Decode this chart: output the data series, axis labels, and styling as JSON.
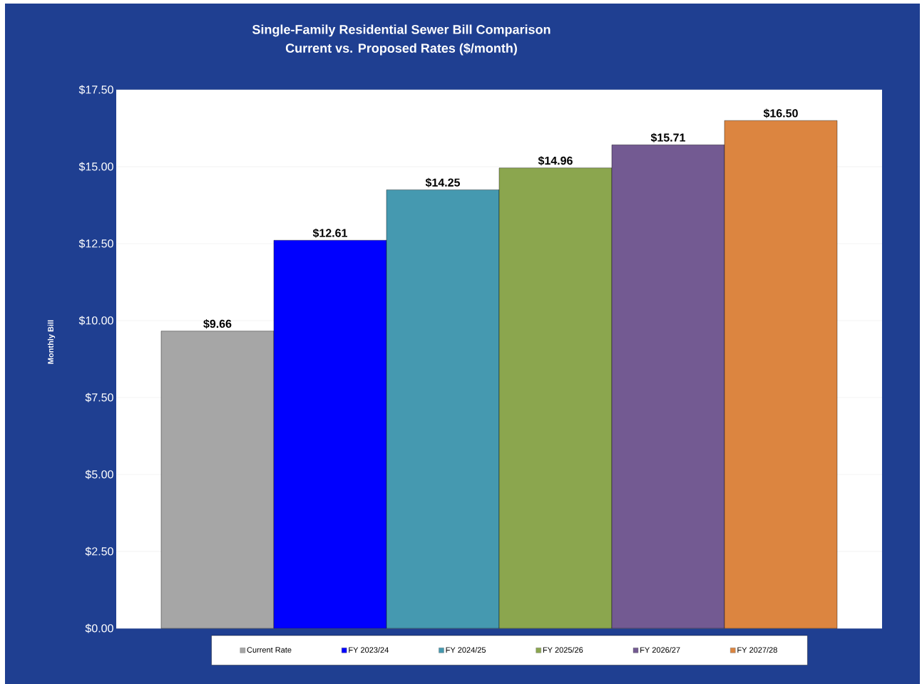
{
  "chart_data": {
    "type": "bar",
    "title": "Single-Family Residential Sewer Bill Comparison",
    "subtitle": "Current vs. Proposed Rates ($/month)",
    "ylabel": "Monthly Bill",
    "categories": [
      null
    ],
    "series": [
      {
        "name": "Current Rate",
        "color": "#a6a6a6",
        "values": [
          9.66
        ],
        "value_labels": [
          "$9.66"
        ]
      },
      {
        "name": "FY 2023/24",
        "color": "#0000ff",
        "values": [
          12.61
        ],
        "value_labels": [
          "$12.61"
        ]
      },
      {
        "name": "FY 2024/25",
        "color": "#4599b0",
        "values": [
          14.25
        ],
        "value_labels": [
          "$14.25"
        ]
      },
      {
        "name": "FY 2025/26",
        "color": "#8ba64e",
        "values": [
          14.96
        ],
        "value_labels": [
          "$14.96"
        ]
      },
      {
        "name": "FY 2026/27",
        "color": "#735a92",
        "values": [
          15.71
        ],
        "value_labels": [
          "$15.71"
        ]
      },
      {
        "name": "FY 2027/28",
        "color": "#dc8540",
        "values": [
          16.5
        ],
        "value_labels": [
          "$16.50"
        ]
      }
    ],
    "ylim": [
      0,
      17.5
    ],
    "yticks": [
      {
        "value": 0,
        "label": "$0.00"
      },
      {
        "value": 2.5,
        "label": "$2.50"
      },
      {
        "value": 5,
        "label": "$5.00"
      },
      {
        "value": 7.5,
        "label": "$7.50"
      },
      {
        "value": 10,
        "label": "$10.00"
      },
      {
        "value": 12.5,
        "label": "$12.50"
      },
      {
        "value": 15,
        "label": "$15.00"
      },
      {
        "value": 17.5,
        "label": "$17.50"
      }
    ],
    "grid": "y",
    "legend": "bottom"
  }
}
